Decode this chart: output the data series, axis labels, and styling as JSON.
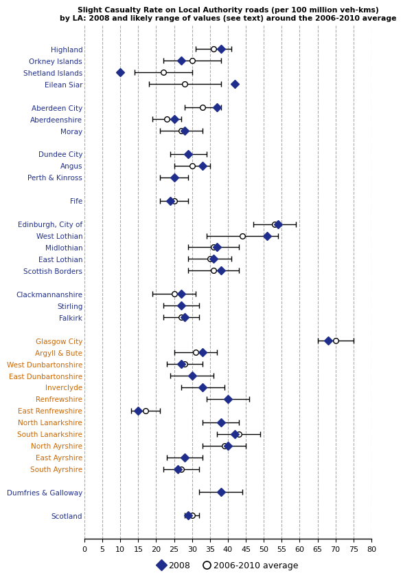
{
  "xlim": [
    0,
    80
  ],
  "xticks": [
    0,
    5,
    10,
    15,
    20,
    25,
    30,
    35,
    40,
    45,
    50,
    55,
    60,
    65,
    70,
    75,
    80
  ],
  "grid_color": "#aaaaaa",
  "categories": [
    "Highland",
    "Orkney Islands",
    "Shetland Islands",
    "Eilean Siar",
    "",
    "Aberdeen City",
    "Aberdeenshire",
    "Moray",
    "",
    "Dundee City",
    "Angus",
    "Perth & Kinross",
    "",
    "Fife",
    "",
    "Edinburgh, City of",
    "West Lothian",
    "Midlothian",
    "East Lothian",
    "Scottish Borders",
    "",
    "Clackmannanshire",
    "Stirling",
    "Falkirk",
    "",
    "Glasgow City",
    "Argyll & Bute",
    "West Dunbartonshire",
    "East Dunbartonshire",
    "Inverclyde",
    "Renfrewshire",
    "East Renfrewshire",
    "North Lanarkshire",
    "South Lanarkshire",
    "North Ayrshire",
    "East Ayrshire",
    "South Ayrshire",
    "",
    "Dumfries & Galloway",
    "",
    "Scotland"
  ],
  "val_2008": [
    38,
    27,
    10,
    42,
    null,
    37,
    25,
    28,
    null,
    29,
    33,
    25,
    null,
    24,
    null,
    54,
    51,
    37,
    36,
    38,
    null,
    27,
    27,
    28,
    null,
    68,
    33,
    27,
    30,
    33,
    40,
    15,
    38,
    42,
    40,
    28,
    26,
    null,
    38,
    null,
    29
  ],
  "val_avg": [
    36,
    30,
    22,
    28,
    null,
    33,
    23,
    27,
    null,
    29,
    30,
    25,
    null,
    25,
    null,
    53,
    44,
    36,
    35,
    36,
    null,
    25,
    27,
    27,
    null,
    70,
    31,
    28,
    30,
    33,
    40,
    17,
    38,
    43,
    39,
    28,
    27,
    null,
    38,
    null,
    30
  ],
  "err_lo": [
    5,
    8,
    8,
    10,
    null,
    5,
    4,
    6,
    null,
    5,
    5,
    4,
    null,
    4,
    null,
    6,
    10,
    7,
    6,
    7,
    null,
    6,
    5,
    5,
    null,
    5,
    6,
    5,
    6,
    6,
    6,
    4,
    5,
    6,
    6,
    5,
    5,
    null,
    6,
    null,
    2
  ],
  "err_hi": [
    5,
    8,
    8,
    10,
    null,
    5,
    4,
    6,
    null,
    5,
    5,
    4,
    null,
    4,
    null,
    6,
    10,
    7,
    6,
    7,
    null,
    6,
    5,
    5,
    null,
    5,
    6,
    5,
    6,
    6,
    6,
    4,
    5,
    6,
    6,
    5,
    5,
    null,
    6,
    null,
    2
  ],
  "marker_color": "#1f2e8c",
  "orange_labels": [
    "Glasgow City",
    "Argyll & Bute",
    "West Dunbartonshire",
    "East Dunbartonshire",
    "Inverclyde",
    "Renfrewshire",
    "East Renfrewshire",
    "North Lanarkshire",
    "South Lanarkshire",
    "North Ayrshire",
    "East Ayrshire",
    "South Ayrshire"
  ],
  "blue_color": "#1f2e8c",
  "orange_color": "#cc6600",
  "title_line1": "Slight Casualty Rate on Local Authority roads (per 100 million veh-kms)",
  "title_line2": "by LA: 2008 and likely range of values (see text) around the 2006-2010 average"
}
